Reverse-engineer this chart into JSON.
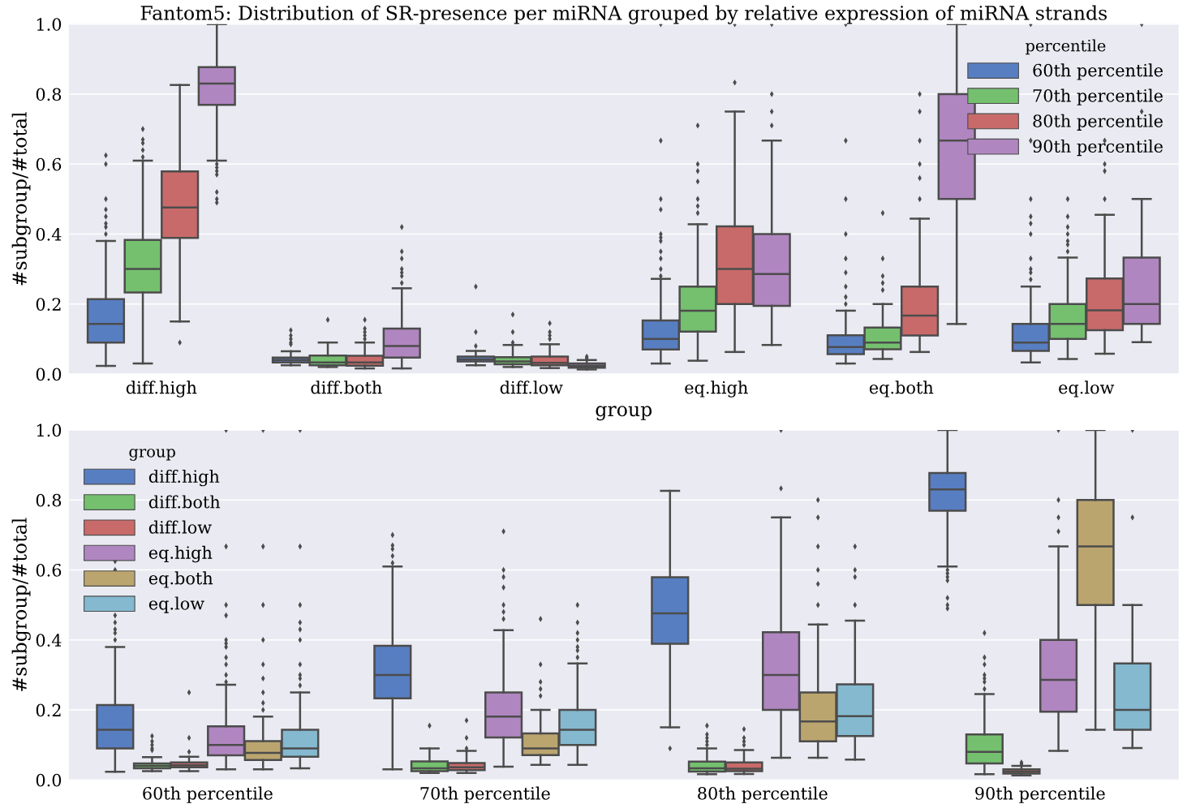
{
  "chart_data": [
    {
      "type": "box",
      "title": "Fantom5: Distribution of SR-presence per miRNA grouped by relative expression of miRNA strands",
      "xlabel": "group",
      "ylabel": "#subgroup/#total",
      "legend_title": "percentile",
      "legend": "top right",
      "grid": "y",
      "categories": [
        "diff.high",
        "diff.both",
        "diff.low",
        "eq.high",
        "eq.both",
        "eq.low"
      ],
      "ylim": [
        0,
        1
      ],
      "yticks": [
        {
          "value": 0,
          "label": "0.0"
        },
        {
          "value": 0.2,
          "label": "0.2"
        },
        {
          "value": 0.4,
          "label": "0.4"
        },
        {
          "value": 0.6,
          "label": "0.6"
        },
        {
          "value": 0.8,
          "label": "0.8"
        },
        {
          "value": 1,
          "label": "1.0"
        }
      ],
      "series": [
        {
          "name": "60th percentile",
          "color": "#587ec2",
          "boxes": [
            {
              "low": 0.023,
              "q1": 0.09,
              "median": 0.143,
              "q3": 0.214,
              "high": 0.38,
              "outliers": [
                0.4,
                0.42,
                0.43,
                0.45,
                0.47,
                0.5,
                0.6,
                0.625
              ]
            },
            {
              "low": 0.025,
              "q1": 0.033,
              "median": 0.04,
              "q3": 0.047,
              "high": 0.065,
              "outliers": [
                0.085,
                0.09,
                0.1,
                0.11,
                0.125
              ]
            },
            {
              "low": 0.025,
              "q1": 0.036,
              "median": 0.042,
              "q3": 0.05,
              "high": 0.066,
              "outliers": [
                0.08,
                0.12,
                0.25
              ]
            },
            {
              "low": 0.03,
              "q1": 0.07,
              "median": 0.1,
              "q3": 0.153,
              "high": 0.272,
              "outliers": [
                0.28,
                0.3,
                0.33,
                0.35,
                0.38,
                0.39,
                0.4,
                0.47,
                0.5,
                0.667,
                1.0
              ]
            },
            {
              "low": 0.03,
              "q1": 0.057,
              "median": 0.077,
              "q3": 0.111,
              "high": 0.181,
              "outliers": [
                0.2,
                0.22,
                0.25,
                0.29,
                0.33,
                0.4,
                0.5,
                0.667,
                1.0
              ]
            },
            {
              "low": 0.033,
              "q1": 0.066,
              "median": 0.09,
              "q3": 0.143,
              "high": 0.25,
              "outliers": [
                0.27,
                0.29,
                0.3,
                0.33,
                0.4,
                0.43,
                0.45,
                0.5,
                0.667,
                1.0
              ]
            }
          ]
        },
        {
          "name": "70th percentile",
          "color": "#74c06f",
          "boxes": [
            {
              "low": 0.03,
              "q1": 0.233,
              "median": 0.3,
              "q3": 0.383,
              "high": 0.61,
              "outliers": [
                0.62,
                0.64,
                0.66,
                0.67,
                0.7
              ]
            },
            {
              "low": 0.02,
              "q1": 0.025,
              "median": 0.033,
              "q3": 0.053,
              "high": 0.09,
              "outliers": [
                0.155
              ]
            },
            {
              "low": 0.02,
              "q1": 0.028,
              "median": 0.036,
              "q3": 0.048,
              "high": 0.083,
              "outliers": [
                0.09,
                0.12,
                0.17
              ]
            },
            {
              "low": 0.038,
              "q1": 0.121,
              "median": 0.181,
              "q3": 0.25,
              "high": 0.428,
              "outliers": [
                0.46,
                0.48,
                0.5,
                0.55,
                0.58,
                0.6,
                0.71
              ]
            },
            {
              "low": 0.043,
              "q1": 0.071,
              "median": 0.09,
              "q3": 0.133,
              "high": 0.2,
              "outliers": [
                0.24,
                0.26,
                0.28,
                0.33,
                0.46
              ]
            },
            {
              "low": 0.043,
              "q1": 0.1,
              "median": 0.143,
              "q3": 0.2,
              "high": 0.333,
              "outliers": [
                0.35,
                0.37,
                0.38,
                0.4,
                0.42,
                0.45,
                0.5
              ]
            }
          ]
        },
        {
          "name": "80th percentile",
          "color": "#c96a6a",
          "boxes": [
            {
              "low": 0.15,
              "q1": 0.389,
              "median": 0.476,
              "q3": 0.579,
              "high": 0.826,
              "outliers": [
                0.09
              ]
            },
            {
              "low": 0.016,
              "q1": 0.024,
              "median": 0.033,
              "q3": 0.052,
              "high": 0.09,
              "outliers": [
                0.1,
                0.11,
                0.12,
                0.13,
                0.155
              ]
            },
            {
              "low": 0.017,
              "q1": 0.025,
              "median": 0.032,
              "q3": 0.05,
              "high": 0.085,
              "outliers": [
                0.1,
                0.11,
                0.12,
                0.145
              ]
            },
            {
              "low": 0.063,
              "q1": 0.2,
              "median": 0.3,
              "q3": 0.422,
              "high": 0.75,
              "outliers": [
                0.833,
                1.0
              ]
            },
            {
              "low": 0.063,
              "q1": 0.11,
              "median": 0.167,
              "q3": 0.25,
              "high": 0.444,
              "outliers": [
                0.5,
                0.56,
                0.6,
                0.667,
                0.75,
                0.8
              ]
            },
            {
              "low": 0.058,
              "q1": 0.125,
              "median": 0.182,
              "q3": 0.273,
              "high": 0.455,
              "outliers": [
                0.5,
                0.58,
                0.6,
                0.667
              ]
            }
          ]
        },
        {
          "name": "90th percentile",
          "color": "#b086c0",
          "boxes": [
            {
              "low": 0.61,
              "q1": 0.769,
              "median": 0.83,
              "q3": 0.877,
              "high": 1.0,
              "outliers": [
                0.49,
                0.5,
                0.52,
                0.57,
                0.58,
                0.59,
                0.6
              ]
            },
            {
              "low": 0.016,
              "q1": 0.047,
              "median": 0.08,
              "q3": 0.13,
              "high": 0.245,
              "outliers": [
                0.26,
                0.28,
                0.29,
                0.3,
                0.33,
                0.35,
                0.42
              ]
            },
            {
              "low": 0.013,
              "q1": 0.018,
              "median": 0.024,
              "q3": 0.03,
              "high": 0.04,
              "outliers": [
                0.045,
                0.05
              ]
            },
            {
              "low": 0.083,
              "q1": 0.195,
              "median": 0.286,
              "q3": 0.4,
              "high": 0.667,
              "outliers": [
                0.71,
                0.75,
                0.8,
                1.0
              ]
            },
            {
              "low": 0.143,
              "q1": 0.5,
              "median": 0.667,
              "q3": 0.8,
              "high": 1.0
            },
            {
              "low": 0.091,
              "q1": 0.143,
              "median": 0.2,
              "q3": 0.333,
              "high": 0.5,
              "outliers": [
                0.75,
                1.0
              ]
            }
          ]
        }
      ]
    },
    {
      "type": "box",
      "ylabel": "#subgroup/#total",
      "legend_title": "group",
      "legend": "top left",
      "grid": "y",
      "categories": [
        "60th percentile",
        "70th percentile",
        "80th percentile",
        "90th percentile"
      ],
      "ylim": [
        0,
        1
      ],
      "yticks": [
        {
          "value": 0,
          "label": "0.0"
        },
        {
          "value": 0.2,
          "label": "0.2"
        },
        {
          "value": 0.4,
          "label": "0.4"
        },
        {
          "value": 0.6,
          "label": "0.6"
        },
        {
          "value": 0.8,
          "label": "0.8"
        },
        {
          "value": 1,
          "label": "1.0"
        }
      ],
      "series": [
        {
          "name": "diff.high",
          "color": "#587ec2",
          "boxes": [
            {
              "low": 0.023,
              "q1": 0.09,
              "median": 0.143,
              "q3": 0.214,
              "high": 0.38,
              "outliers": [
                0.4,
                0.42,
                0.43,
                0.45,
                0.47,
                0.6,
                0.625
              ]
            },
            {
              "low": 0.03,
              "q1": 0.233,
              "median": 0.3,
              "q3": 0.383,
              "high": 0.61,
              "outliers": [
                0.62,
                0.64,
                0.66,
                0.67,
                0.7
              ]
            },
            {
              "low": 0.15,
              "q1": 0.389,
              "median": 0.476,
              "q3": 0.579,
              "high": 0.826,
              "outliers": [
                0.09
              ]
            },
            {
              "low": 0.61,
              "q1": 0.769,
              "median": 0.83,
              "q3": 0.877,
              "high": 1.0,
              "outliers": [
                0.49,
                0.5,
                0.52,
                0.57,
                0.58,
                0.59,
                0.6
              ]
            }
          ]
        },
        {
          "name": "diff.both",
          "color": "#74c06f",
          "boxes": [
            {
              "low": 0.025,
              "q1": 0.033,
              "median": 0.04,
              "q3": 0.047,
              "high": 0.065,
              "outliers": [
                0.085,
                0.09,
                0.1,
                0.11,
                0.125
              ]
            },
            {
              "low": 0.02,
              "q1": 0.025,
              "median": 0.033,
              "q3": 0.053,
              "high": 0.09,
              "outliers": [
                0.155
              ]
            },
            {
              "low": 0.016,
              "q1": 0.024,
              "median": 0.033,
              "q3": 0.052,
              "high": 0.09,
              "outliers": [
                0.1,
                0.11,
                0.12,
                0.13,
                0.155
              ]
            },
            {
              "low": 0.016,
              "q1": 0.047,
              "median": 0.08,
              "q3": 0.13,
              "high": 0.245,
              "outliers": [
                0.26,
                0.28,
                0.29,
                0.3,
                0.33,
                0.35,
                0.42
              ]
            }
          ]
        },
        {
          "name": "diff.low",
          "color": "#c96a6a",
          "boxes": [
            {
              "low": 0.025,
              "q1": 0.036,
              "median": 0.042,
              "q3": 0.05,
              "high": 0.066,
              "outliers": [
                0.08,
                0.12,
                0.25
              ]
            },
            {
              "low": 0.02,
              "q1": 0.028,
              "median": 0.036,
              "q3": 0.048,
              "high": 0.083,
              "outliers": [
                0.09,
                0.12,
                0.17
              ]
            },
            {
              "low": 0.017,
              "q1": 0.025,
              "median": 0.032,
              "q3": 0.05,
              "high": 0.085,
              "outliers": [
                0.1,
                0.11,
                0.12,
                0.145
              ]
            },
            {
              "low": 0.013,
              "q1": 0.018,
              "median": 0.024,
              "q3": 0.03,
              "high": 0.04,
              "outliers": [
                0.045,
                0.05
              ]
            }
          ]
        },
        {
          "name": "eq.high",
          "color": "#b086c0",
          "boxes": [
            {
              "low": 0.03,
              "q1": 0.07,
              "median": 0.1,
              "q3": 0.153,
              "high": 0.272,
              "outliers": [
                0.28,
                0.3,
                0.33,
                0.35,
                0.38,
                0.39,
                0.4,
                0.47,
                0.5,
                0.667,
                1.0
              ]
            },
            {
              "low": 0.038,
              "q1": 0.121,
              "median": 0.181,
              "q3": 0.25,
              "high": 0.428,
              "outliers": [
                0.46,
                0.48,
                0.5,
                0.55,
                0.58,
                0.6,
                0.71
              ]
            },
            {
              "low": 0.063,
              "q1": 0.2,
              "median": 0.3,
              "q3": 0.422,
              "high": 0.75,
              "outliers": [
                0.833,
                1.0
              ]
            },
            {
              "low": 0.083,
              "q1": 0.195,
              "median": 0.286,
              "q3": 0.4,
              "high": 0.667,
              "outliers": [
                0.71,
                0.75,
                0.8,
                1.0
              ]
            }
          ]
        },
        {
          "name": "eq.both",
          "color": "#bba56f",
          "boxes": [
            {
              "low": 0.03,
              "q1": 0.057,
              "median": 0.077,
              "q3": 0.111,
              "high": 0.181,
              "outliers": [
                0.2,
                0.22,
                0.25,
                0.29,
                0.33,
                0.4,
                0.5,
                0.667,
                1.0
              ]
            },
            {
              "low": 0.043,
              "q1": 0.071,
              "median": 0.09,
              "q3": 0.133,
              "high": 0.2,
              "outliers": [
                0.24,
                0.26,
                0.28,
                0.33,
                0.46
              ]
            },
            {
              "low": 0.063,
              "q1": 0.11,
              "median": 0.167,
              "q3": 0.25,
              "high": 0.444,
              "outliers": [
                0.5,
                0.56,
                0.6,
                0.667,
                0.75,
                0.8
              ]
            },
            {
              "low": 0.143,
              "q1": 0.5,
              "median": 0.667,
              "q3": 0.8,
              "high": 1.0
            }
          ]
        },
        {
          "name": "eq.low",
          "color": "#84b9d0",
          "boxes": [
            {
              "low": 0.033,
              "q1": 0.066,
              "median": 0.09,
              "q3": 0.143,
              "high": 0.25,
              "outliers": [
                0.27,
                0.29,
                0.3,
                0.33,
                0.4,
                0.43,
                0.45,
                0.5,
                0.667,
                1.0
              ]
            },
            {
              "low": 0.043,
              "q1": 0.1,
              "median": 0.143,
              "q3": 0.2,
              "high": 0.333,
              "outliers": [
                0.35,
                0.37,
                0.38,
                0.4,
                0.42,
                0.45,
                0.5
              ]
            },
            {
              "low": 0.058,
              "q1": 0.125,
              "median": 0.182,
              "q3": 0.273,
              "high": 0.455,
              "outliers": [
                0.5,
                0.58,
                0.6,
                0.667
              ]
            },
            {
              "low": 0.091,
              "q1": 0.143,
              "median": 0.2,
              "q3": 0.333,
              "high": 0.5,
              "outliers": [
                0.75,
                1.0
              ]
            }
          ]
        }
      ]
    }
  ]
}
